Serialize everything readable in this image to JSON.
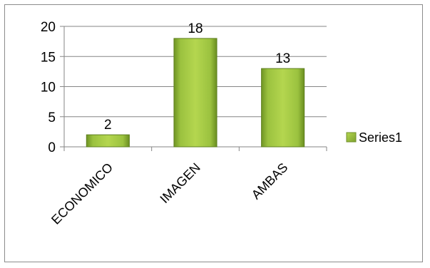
{
  "chart_data": {
    "type": "bar",
    "categories": [
      "ECONOMICO",
      "IMAGEN",
      "AMBAS"
    ],
    "series": [
      {
        "name": "Series1",
        "values": [
          2,
          18,
          13
        ]
      }
    ],
    "ylim": [
      0,
      20
    ],
    "yticks": [
      0,
      5,
      10,
      15,
      20
    ],
    "data_labels": [
      "2",
      "18",
      "13"
    ],
    "grid": true,
    "legend_position": "right",
    "bar_color": "#8db33c"
  }
}
